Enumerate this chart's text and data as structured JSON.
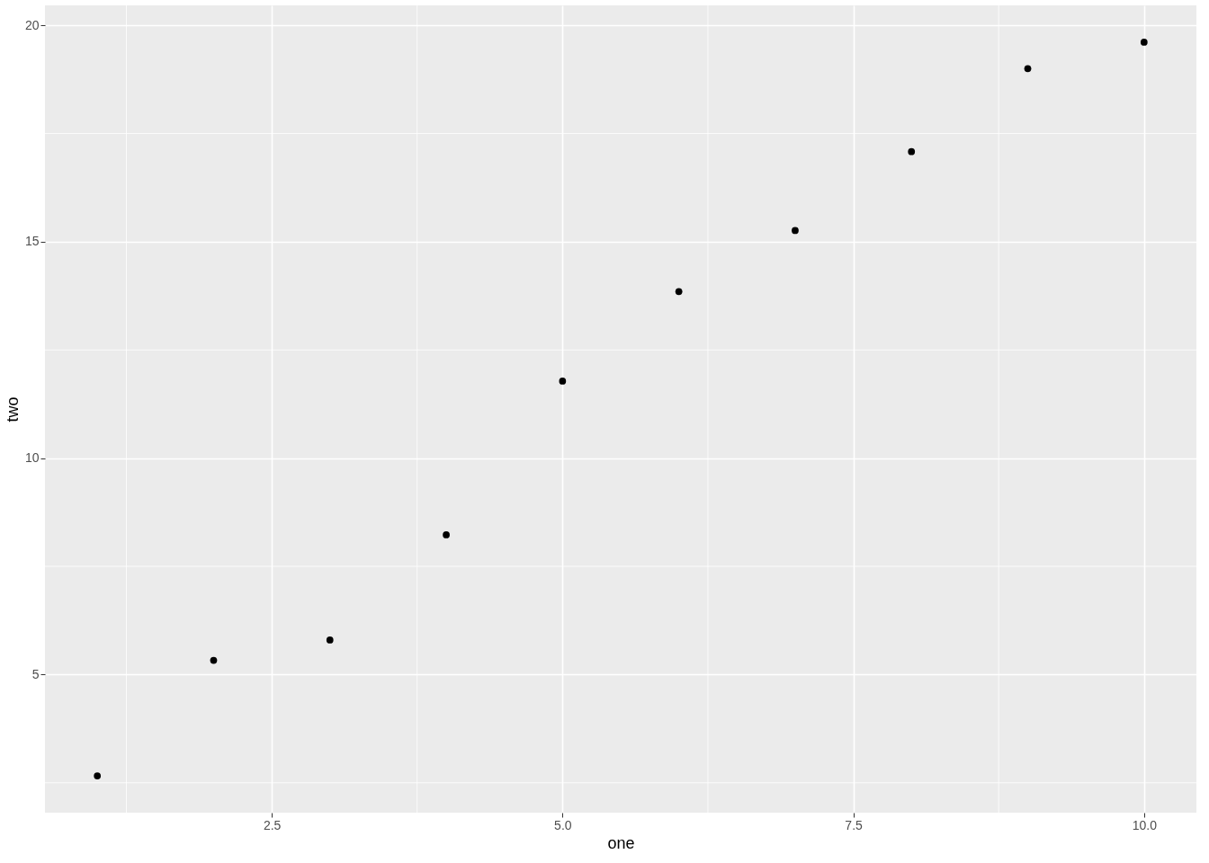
{
  "chart_data": {
    "type": "scatter",
    "xlabel": "one",
    "ylabel": "two",
    "x": [
      1,
      2,
      3,
      4,
      5,
      6,
      7,
      8,
      9,
      10
    ],
    "series": [
      {
        "color": "#000000",
        "values": [
          2.66,
          5.33,
          5.8,
          8.23,
          11.78,
          13.85,
          15.26,
          17.08,
          19.0,
          19.61
        ]
      }
    ],
    "xlim": [
      0.55,
      10.45
    ],
    "xticks": [
      {
        "value": 2.5,
        "label": "2.5"
      },
      {
        "value": 5,
        "label": "5.0"
      },
      {
        "value": 7.5,
        "label": "7.5"
      },
      {
        "value": 10,
        "label": "10.0"
      }
    ],
    "ylim": [
      1.81,
      20.46
    ],
    "yticks": [
      5,
      10,
      15,
      20
    ],
    "grid": true,
    "marker": "circle"
  }
}
